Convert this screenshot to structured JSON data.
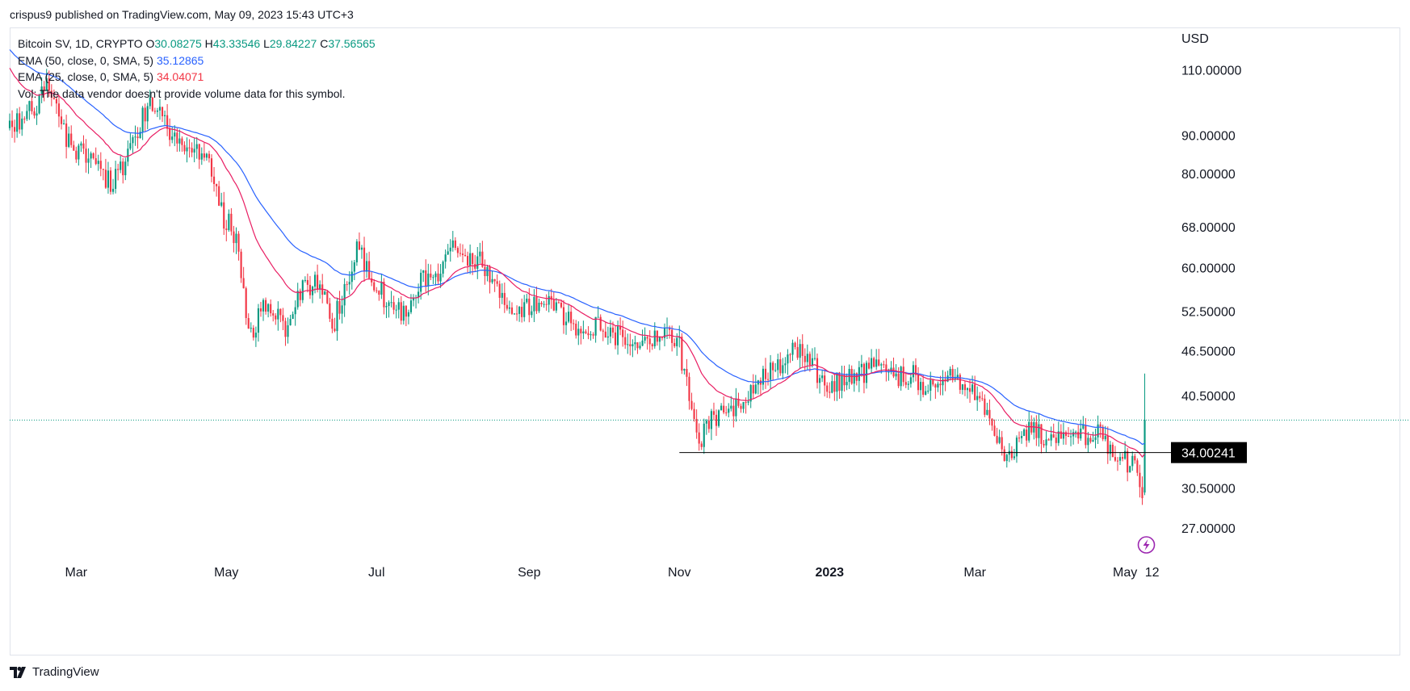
{
  "header": {
    "publisher": "crispus9 published on TradingView.com, May 09, 2023 15:43 UTC+3"
  },
  "legend": {
    "symbol": "Bitcoin SV, 1D, CRYPTO",
    "o_label": "O",
    "o_value": "30.08275",
    "h_label": "H",
    "h_value": "43.33546",
    "l_label": "L",
    "l_value": "29.84227",
    "c_label": "C",
    "c_value": "37.56565",
    "ema50_label": "EMA (50, close, 0, SMA, 5)",
    "ema50_value": "35.12865",
    "ema25_label": "EMA (25, close, 0, SMA, 5)",
    "ema25_value": "34.04071",
    "vol_text": "Vol: The data vendor doesn't provide volume data for this symbol."
  },
  "footer": {
    "brand": "TradingView"
  },
  "colors": {
    "up": "#089981",
    "down": "#f23645",
    "ema50": "#2962ff",
    "ema25": "#e91e63",
    "support": "#000000",
    "price_line": "#089981",
    "flash": "#9c27b0"
  },
  "chart_data": {
    "type": "candlestick",
    "currency": "USD",
    "scale": "log",
    "ylim": [
      24.5,
      125
    ],
    "y_ticks": [
      {
        "value": 110,
        "label": "110.00000"
      },
      {
        "value": 90,
        "label": "90.00000"
      },
      {
        "value": 80,
        "label": "80.00000"
      },
      {
        "value": 68,
        "label": "68.00000"
      },
      {
        "value": 60,
        "label": "60.00000"
      },
      {
        "value": 52.5,
        "label": "52.50000"
      },
      {
        "value": 46.5,
        "label": "46.50000"
      },
      {
        "value": 40.5,
        "label": "40.50000"
      },
      {
        "value": 30.5,
        "label": "30.50000"
      },
      {
        "value": 27,
        "label": "27.00000"
      }
    ],
    "x_ticks": [
      {
        "date": "2022-03-01",
        "label": "Mar",
        "bold": false
      },
      {
        "date": "2022-05-01",
        "label": "May",
        "bold": false
      },
      {
        "date": "2022-07-01",
        "label": "Jul",
        "bold": false
      },
      {
        "date": "2022-09-01",
        "label": "Sep",
        "bold": false
      },
      {
        "date": "2022-11-01",
        "label": "Nov",
        "bold": false
      },
      {
        "date": "2023-01-01",
        "label": "2023",
        "bold": true
      },
      {
        "date": "2023-03-01",
        "label": "Mar",
        "bold": false
      },
      {
        "date": "2023-05-01",
        "label": "May",
        "bold": false
      },
      {
        "date": "2023-05-12",
        "label": "12",
        "bold": false
      }
    ],
    "x_range": [
      "2022-02-02",
      "2023-05-19"
    ],
    "close_anchors": [
      [
        "2022-02-02",
        92
      ],
      [
        "2022-02-12",
        98
      ],
      [
        "2022-02-17",
        104
      ],
      [
        "2022-02-25",
        90
      ],
      [
        "2022-03-01",
        86
      ],
      [
        "2022-03-08",
        82
      ],
      [
        "2022-03-15",
        78
      ],
      [
        "2022-03-20",
        82
      ],
      [
        "2022-03-28",
        96
      ],
      [
        "2022-04-03",
        100
      ],
      [
        "2022-04-07",
        92
      ],
      [
        "2022-04-15",
        84
      ],
      [
        "2022-04-20",
        86
      ],
      [
        "2022-04-25",
        80
      ],
      [
        "2022-04-30",
        70
      ],
      [
        "2022-05-05",
        66
      ],
      [
        "2022-05-09",
        52
      ],
      [
        "2022-05-12",
        50
      ],
      [
        "2022-05-18",
        54
      ],
      [
        "2022-05-25",
        50
      ],
      [
        "2022-06-01",
        56
      ],
      [
        "2022-06-08",
        57
      ],
      [
        "2022-06-13",
        50
      ],
      [
        "2022-06-18",
        56
      ],
      [
        "2022-06-23",
        64
      ],
      [
        "2022-06-29",
        58
      ],
      [
        "2022-07-04",
        55
      ],
      [
        "2022-07-12",
        52
      ],
      [
        "2022-07-16",
        55
      ],
      [
        "2022-07-20",
        58
      ],
      [
        "2022-07-25",
        57
      ],
      [
        "2022-07-30",
        64
      ],
      [
        "2022-08-05",
        62
      ],
      [
        "2022-08-12",
        61
      ],
      [
        "2022-08-19",
        56
      ],
      [
        "2022-08-22",
        53
      ],
      [
        "2022-08-30",
        53
      ],
      [
        "2022-09-10",
        55
      ],
      [
        "2022-09-15",
        52
      ],
      [
        "2022-09-21",
        50
      ],
      [
        "2022-10-01",
        50
      ],
      [
        "2022-10-10",
        48
      ],
      [
        "2022-10-20",
        48
      ],
      [
        "2022-10-31",
        48.5
      ],
      [
        "2022-11-08",
        37
      ],
      [
        "2022-11-09",
        35
      ],
      [
        "2022-11-15",
        38
      ],
      [
        "2022-11-22",
        38
      ],
      [
        "2022-12-01",
        42
      ],
      [
        "2022-12-10",
        44
      ],
      [
        "2022-12-15",
        46
      ],
      [
        "2022-12-22",
        46.5
      ],
      [
        "2022-12-30",
        42
      ],
      [
        "2023-01-10",
        43
      ],
      [
        "2023-01-18",
        44
      ],
      [
        "2023-01-28",
        43
      ],
      [
        "2023-02-04",
        43
      ],
      [
        "2023-02-10",
        41
      ],
      [
        "2023-02-20",
        43
      ],
      [
        "2023-03-01",
        41
      ],
      [
        "2023-03-09",
        36
      ],
      [
        "2023-03-14",
        33
      ],
      [
        "2023-03-20",
        36.5
      ],
      [
        "2023-03-28",
        36
      ],
      [
        "2023-04-08",
        35
      ],
      [
        "2023-04-15",
        36
      ],
      [
        "2023-04-20",
        37
      ],
      [
        "2023-04-24",
        34
      ],
      [
        "2023-04-28",
        33.5
      ],
      [
        "2023-05-05",
        32.5
      ],
      [
        "2023-05-07",
        30.5
      ],
      [
        "2023-05-08",
        30.08
      ]
    ],
    "last_candle": {
      "date": "2023-05-09",
      "open": 30.08275,
      "high": 43.33546,
      "low": 29.84227,
      "close": 37.56565
    },
    "ema50_last": 35.12865,
    "ema25_last": 34.04071,
    "support_line": {
      "value": 34.00241,
      "label": "34.00241",
      "from": "2022-11-01"
    },
    "current_price_line": 37.56565
  }
}
